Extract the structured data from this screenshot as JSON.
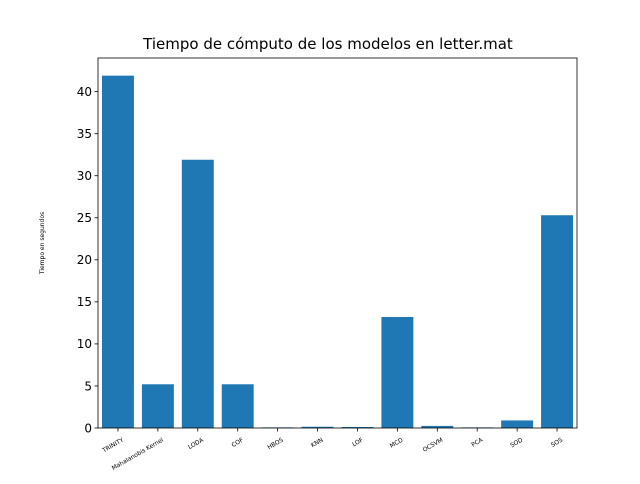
{
  "chart_data": {
    "type": "bar",
    "title": "Tiempo de cómputo de los modelos en letter.mat",
    "xlabel": "",
    "ylabel": "Tiempo en segundos",
    "categories": [
      "TRINITY",
      "Mahalanobis Kernel",
      "LODA",
      "COF",
      "HBOS",
      "KNN",
      "LOF",
      "MCD",
      "OCSVM",
      "PCA",
      "SOD",
      "SOS"
    ],
    "values": [
      41.9,
      5.2,
      31.9,
      5.2,
      0.03,
      0.15,
      0.12,
      13.2,
      0.25,
      0.03,
      0.9,
      25.3
    ],
    "ylim": [
      0,
      44
    ],
    "yticks": [
      0,
      5,
      10,
      15,
      20,
      25,
      30,
      35,
      40
    ],
    "grid": false,
    "colors": {
      "bar": "#1f77b4"
    }
  }
}
